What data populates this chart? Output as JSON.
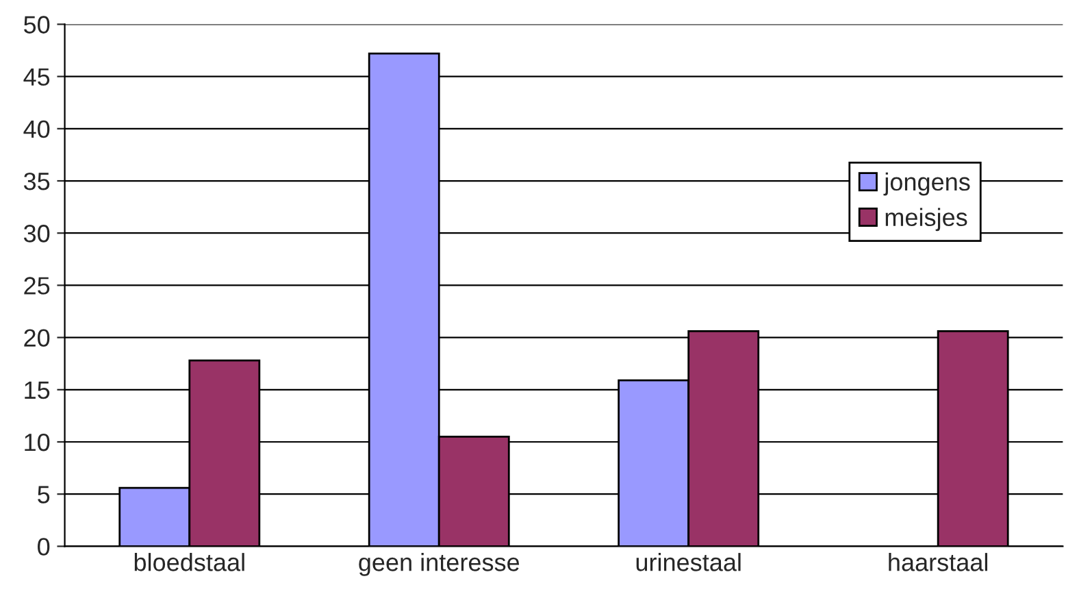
{
  "chart_data": {
    "type": "bar",
    "categories": [
      "bloedstaal",
      "geen interesse",
      "urinestaal",
      "haarstaal"
    ],
    "series": [
      {
        "name": "jongens",
        "color": "#9999ff",
        "values": [
          5.6,
          47.2,
          15.9,
          null
        ]
      },
      {
        "name": "meisjes",
        "color": "#993366",
        "values": [
          17.8,
          10.5,
          20.6,
          20.6
        ]
      }
    ],
    "ylim": [
      0,
      50
    ],
    "yticks": [
      0,
      5,
      10,
      15,
      20,
      25,
      30,
      35,
      40,
      45,
      50
    ],
    "grid": "y",
    "legend": "right"
  }
}
